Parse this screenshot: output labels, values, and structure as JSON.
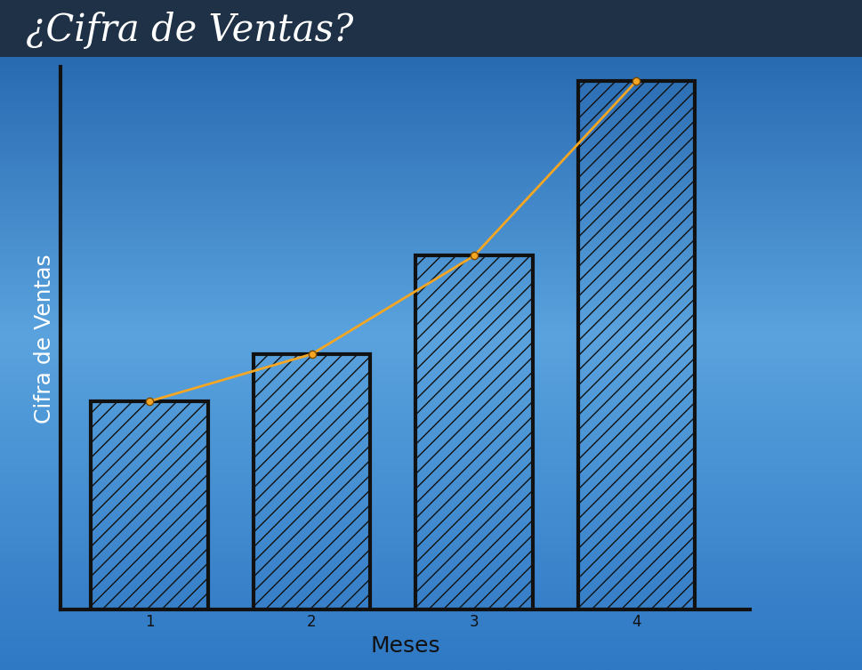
{
  "chart_data": {
    "type": "bar",
    "title": "¿Cifra de Ventas?",
    "x_label": "Meses",
    "y_label": "Cifra de Ventas",
    "categories": [
      "1",
      "2",
      "3",
      "4"
    ],
    "series": [
      {
        "type": "bar",
        "color": "#111111",
        "values": [
          265,
          325,
          450,
          672
        ]
      },
      {
        "type": "line",
        "color": "#f5a623",
        "marker": "o",
        "values": [
          265,
          325,
          450,
          672
        ]
      }
    ],
    "ylim": [
      0,
      690
    ],
    "tick_labels": "x",
    "grid": false
  }
}
